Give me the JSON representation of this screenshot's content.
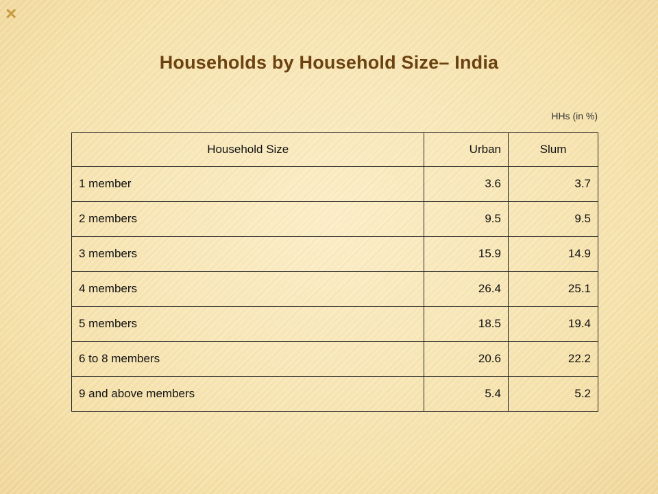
{
  "slide": {
    "corner_mark": "×",
    "title": "Households by Household Size– India",
    "unit_note": "HHs (in %)"
  },
  "table": {
    "headers": [
      "Household Size",
      "Urban",
      "Slum"
    ],
    "rows": [
      [
        "1 member",
        "3.6",
        "3.7"
      ],
      [
        "2 members",
        "9.5",
        "9.5"
      ],
      [
        "3 members",
        "15.9",
        "14.9"
      ],
      [
        "4 members",
        "26.4",
        "25.1"
      ],
      [
        "5 members",
        "18.5",
        "19.4"
      ],
      [
        "6 to 8 members",
        "20.6",
        "22.2"
      ],
      [
        "9 and above members",
        "5.4",
        "5.2"
      ]
    ]
  },
  "colors": {
    "title": "#6b4210",
    "background": "#f6e3ae",
    "corner_mark": "#c79b3f"
  }
}
